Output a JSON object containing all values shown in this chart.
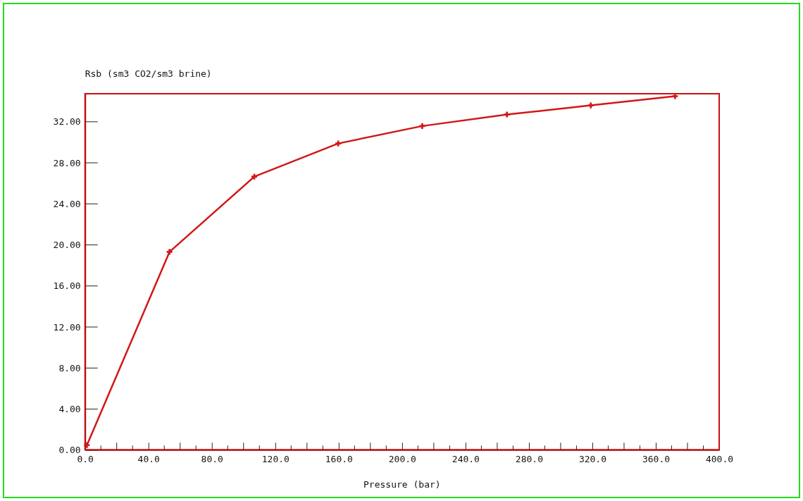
{
  "chart_data": {
    "type": "line",
    "xlabel": "Pressure (bar)",
    "ylabel": "Rsb (sm3 CO2/sm3 brine)",
    "x": [
      1.2,
      53.3,
      106.8,
      159.7,
      212.7,
      266.1,
      319.0,
      372.2
    ],
    "series": [
      {
        "color": "#d01818",
        "values": [
          0.45,
          19.29,
          26.62,
          29.85,
          31.55,
          32.67,
          33.56,
          34.46
        ]
      }
    ],
    "xlim": [
      0,
      400
    ],
    "xticks": [
      {
        "value": 0,
        "label": "0.0"
      },
      {
        "value": 40,
        "label": "40.0"
      },
      {
        "value": 80,
        "label": "80.0"
      },
      {
        "value": 120,
        "label": "120.0"
      },
      {
        "value": 160,
        "label": "160.0"
      },
      {
        "value": 200,
        "label": "200.0"
      },
      {
        "value": 240,
        "label": "240.0"
      },
      {
        "value": 280,
        "label": "280.0"
      },
      {
        "value": 320,
        "label": "320.0"
      },
      {
        "value": 360,
        "label": "360.0"
      },
      {
        "value": 400,
        "label": "400.0"
      }
    ],
    "ylim": [
      0,
      34.7
    ],
    "yticks": [
      {
        "value": 0,
        "label": "0.00"
      },
      {
        "value": 4,
        "label": "4.00"
      },
      {
        "value": 8,
        "label": "8.00"
      },
      {
        "value": 12,
        "label": "12.00"
      },
      {
        "value": 16,
        "label": "16.00"
      },
      {
        "value": 20,
        "label": "20.00"
      },
      {
        "value": 24,
        "label": "24.00"
      },
      {
        "value": 28,
        "label": "28.00"
      },
      {
        "value": 32,
        "label": "32.00"
      }
    ],
    "marker": "cross",
    "line_style": "solid",
    "grid": false
  }
}
